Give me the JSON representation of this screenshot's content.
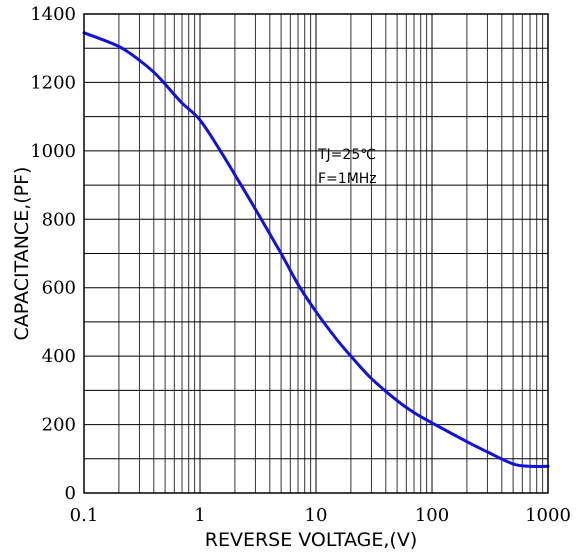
{
  "chart_data": {
    "type": "line",
    "xlabel": "REVERSE VOLTAGE,(V)",
    "ylabel": "CAPACITANCE,(PF)",
    "xscale": "log",
    "xlim": [
      0.1,
      1000
    ],
    "ylim": [
      0,
      1400
    ],
    "x_ticks": [
      "0.1",
      "1",
      "10",
      "100",
      "1000"
    ],
    "y_ticks": [
      "0",
      "200",
      "400",
      "600",
      "800",
      "1000",
      "1200",
      "1400"
    ],
    "grid": true,
    "annotations": [
      "TJ=25℃",
      "F=1MHz"
    ],
    "series": [
      {
        "color": "#1010e0",
        "x": [
          0.1,
          0.2,
          0.3,
          0.4,
          0.5,
          0.7,
          1,
          1.5,
          2,
          3,
          5,
          7,
          10,
          15,
          20,
          30,
          50,
          70,
          100,
          200,
          300,
          500,
          700,
          1000
        ],
        "y": [
          1345,
          1305,
          1265,
          1230,
          1195,
          1140,
          1090,
          1000,
          930,
          830,
          700,
          610,
          530,
          450,
          400,
          335,
          270,
          235,
          205,
          150,
          120,
          85,
          78,
          78
        ]
      }
    ]
  }
}
